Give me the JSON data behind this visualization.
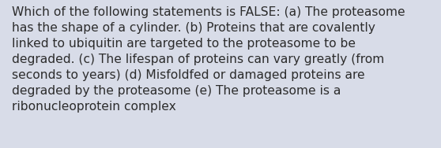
{
  "text": "Which of the following statements is FALSE: (a) The proteasome\nhas the shape of a cylinder. (b) Proteins that are covalently\nlinked to ubiquitin are targeted to the proteasome to be\ndegraded. (c) The lifespan of proteins can vary greatly (from\nseconds to years) (d) Misfoldfed or damaged proteins are\ndegraded by the proteasome (e) The proteasome is a\nribonucleoprotein complex",
  "background_color": "#d8dce8",
  "text_color": "#2c2c2c",
  "font_size": 11.2,
  "fig_width": 5.58,
  "fig_height": 1.88,
  "dpi": 100
}
